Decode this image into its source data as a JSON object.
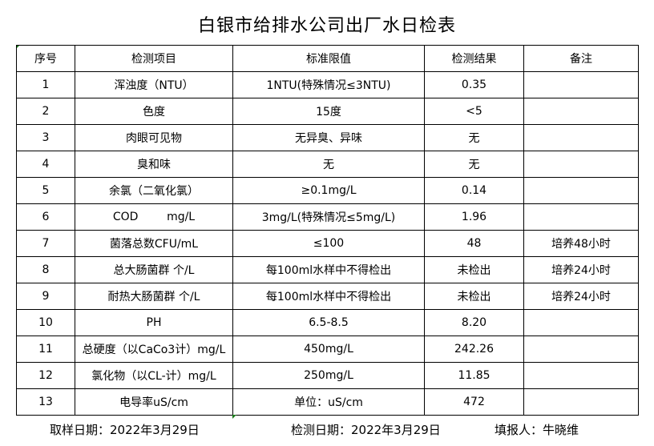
{
  "title": "白银市给排水公司出厂水日检表",
  "columns": [
    "序号",
    "检测项目",
    "标准限值",
    "检测结果",
    "备注"
  ],
  "rows": [
    [
      "1",
      "浑浊度（NTU）",
      "1NTU(特殊情况≤3NTU)",
      "0.35",
      ""
    ],
    [
      "2",
      "色度",
      "15度",
      "<5",
      ""
    ],
    [
      "3",
      "肉眼可见物",
      "无异臭、异味",
      "无",
      ""
    ],
    [
      "4",
      "臭和味",
      "无",
      "无",
      ""
    ],
    [
      "5",
      "余氯（二氧化氯）",
      "≥0.1mg/L",
      "0.14",
      ""
    ],
    [
      "6",
      "COD        mg/L",
      "3mg/L(特殊情况≤5mg/L)",
      "1.96",
      ""
    ],
    [
      "7",
      "菌落总数CFU/mL",
      "≤100",
      "48",
      "培养48小时"
    ],
    [
      "8",
      "总大肠菌群 个/L",
      "每100ml水样中不得检出",
      "未检出",
      "培养24小时"
    ],
    [
      "9",
      "耐热大肠菌群 个/L",
      "每100ml水样中不得检出",
      "未检出",
      "培养24小时"
    ],
    [
      "10",
      "PH",
      "6.5-8.5",
      "8.20",
      ""
    ],
    [
      "11",
      "总硬度（以CaCo3计）mg/L",
      "450mg/L",
      "242.26",
      ""
    ],
    [
      "12",
      "氯化物（以CL-计）mg/L",
      "250mg/L",
      "11.85",
      ""
    ],
    [
      "13",
      "电导率uS/cm",
      "单位：uS/cm",
      "472",
      ""
    ]
  ],
  "footer": {
    "sampling_date": "取样日期：2022年3月29日",
    "test_date": "检测日期：2022年3月29日",
    "reporter": "填报人：牛晓维"
  }
}
